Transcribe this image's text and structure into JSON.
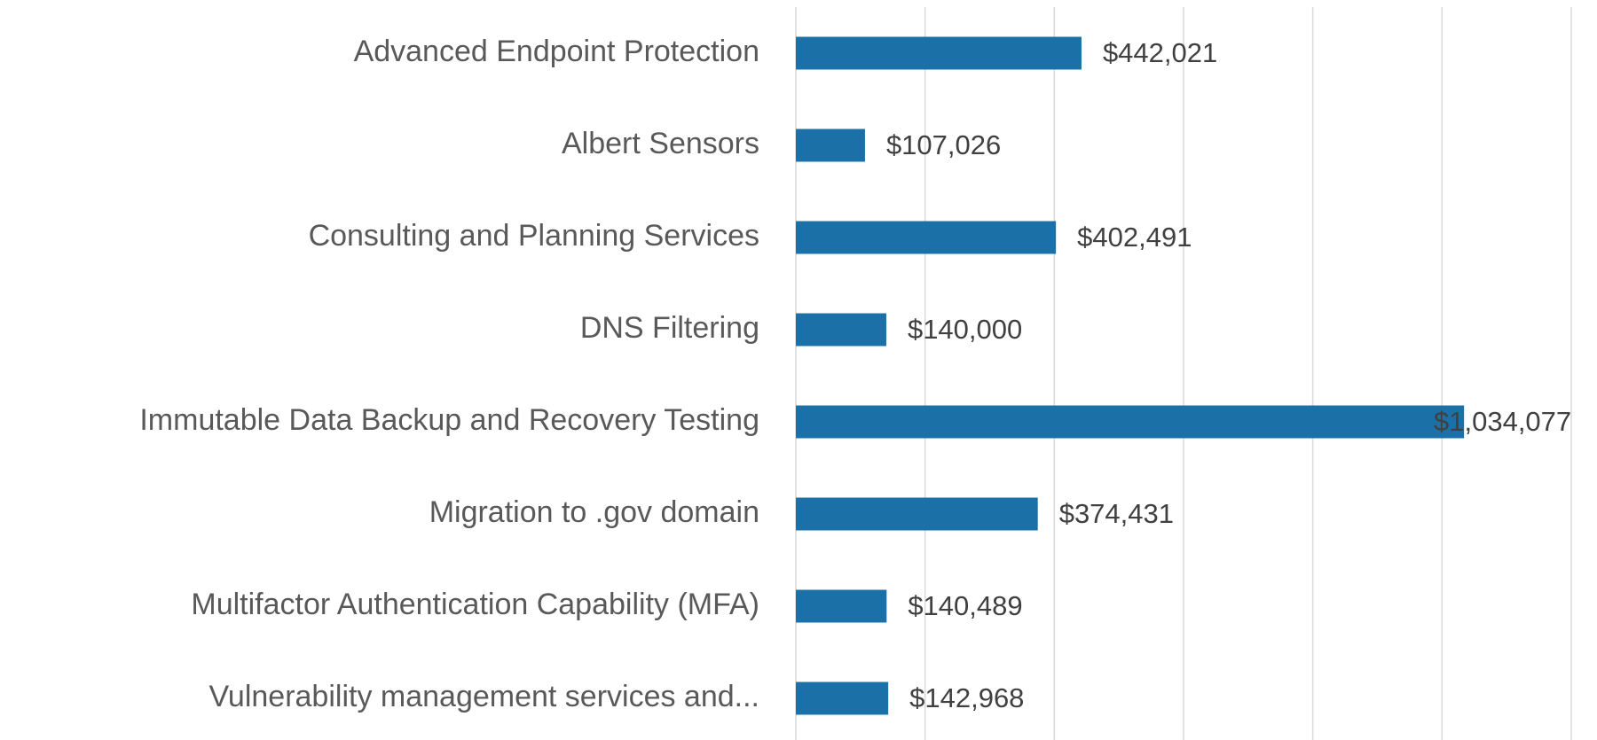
{
  "chart_data": {
    "type": "bar",
    "orientation": "horizontal",
    "categories": [
      "Advanced Endpoint Protection",
      "Albert Sensors",
      "Consulting and Planning Services",
      "DNS Filtering",
      "Immutable Data Backup and Recovery Testing",
      "Migration to .gov domain",
      "Multifactor Authentication Capability (MFA)",
      "Vulnerability management services and..."
    ],
    "values": [
      442021,
      107026,
      402491,
      140000,
      1034077,
      374431,
      140489,
      142968
    ],
    "value_labels": [
      "$442,021",
      "$107,026",
      "$402,491",
      "$140,000",
      "$1,034,077",
      "$374,431",
      "$140,489",
      "$142,968"
    ],
    "color": "#1b71a7",
    "xlim": [
      0,
      1200000
    ],
    "xticks": [
      0,
      200000,
      400000,
      600000,
      800000,
      1000000,
      1200000
    ],
    "grid": true
  }
}
